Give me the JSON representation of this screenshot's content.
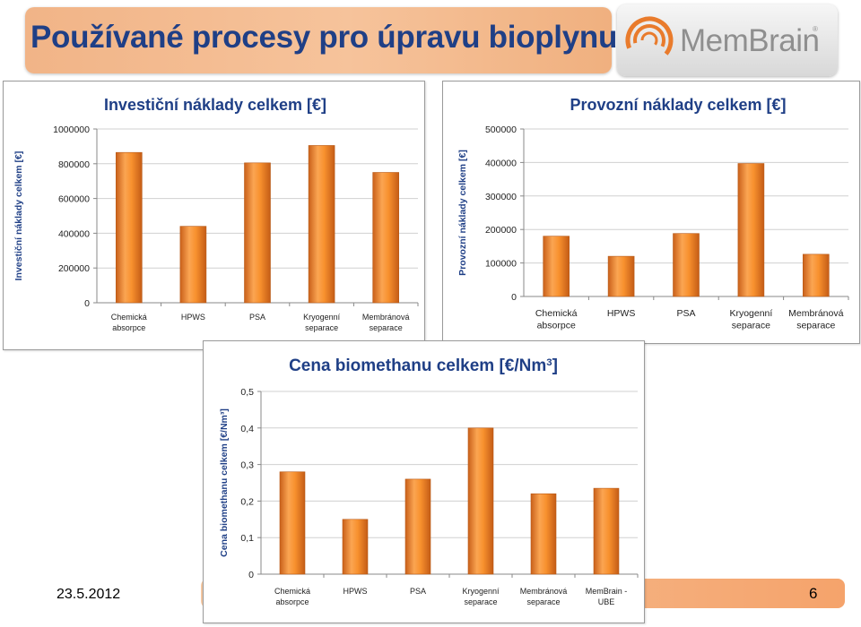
{
  "header": {
    "title": "Používané procesy pro úpravu bioplynu",
    "logo_text": "MemBrain",
    "logo_mark": "®"
  },
  "footer": {
    "date": "23.5.2012",
    "page_number": "6"
  },
  "colors": {
    "bar": "#f58a1f",
    "title_text": "#1f3f86",
    "grid": "#d0d0d0"
  },
  "icons": [
    "membrain-logo-icon"
  ],
  "chart_data": [
    {
      "type": "bar",
      "title": "Investiční náklady celkem [€]",
      "ylabel": "Investiční náklady celkem [€]",
      "xlabel": "",
      "categories": [
        [
          "Chemická",
          "absorpce"
        ],
        [
          "HPWS"
        ],
        [
          "PSA"
        ],
        [
          "Kryogenní",
          "separace"
        ],
        [
          "Membránová",
          "separace"
        ]
      ],
      "values": [
        865000,
        440000,
        805000,
        905000,
        750000
      ],
      "ylim": [
        0,
        1000000
      ],
      "yticks": [
        "0",
        "200000",
        "400000",
        "600000",
        "800000",
        "1000000"
      ],
      "grid": true,
      "legend": "none"
    },
    {
      "type": "bar",
      "title": "Provozní náklady celkem [€]",
      "ylabel": "Provozní náklady celkem [€]",
      "xlabel": "",
      "categories": [
        [
          "Chemická",
          "absorpce"
        ],
        [
          "HPWS"
        ],
        [
          "PSA"
        ],
        [
          "Kryogenní",
          "separace"
        ],
        [
          "Membránová",
          "separace"
        ]
      ],
      "values": [
        180000,
        120000,
        188000,
        397000,
        126000
      ],
      "ylim": [
        0,
        500000
      ],
      "yticks": [
        "0",
        "100000",
        "200000",
        "300000",
        "400000",
        "500000"
      ],
      "grid": true,
      "legend": "none"
    },
    {
      "type": "bar",
      "title": "Cena biomethanu celkem [€/Nm",
      "title_sup": "3",
      "title_end": "]",
      "ylabel": "Cena biomethanu celkem [€/Nm³]",
      "xlabel": "",
      "categories": [
        [
          "Chemická",
          "absorpce"
        ],
        [
          "HPWS"
        ],
        [
          "PSA"
        ],
        [
          "Kryogenní",
          "separace"
        ],
        [
          "Membránová",
          "separace"
        ],
        [
          "MemBrain -",
          "UBE"
        ]
      ],
      "values": [
        0.28,
        0.15,
        0.26,
        0.4,
        0.22,
        0.235
      ],
      "ylim": [
        0,
        0.5
      ],
      "yticks": [
        "0",
        "0,1",
        "0,2",
        "0,3",
        "0,4",
        "0,5"
      ],
      "grid": true,
      "legend": "none"
    }
  ]
}
